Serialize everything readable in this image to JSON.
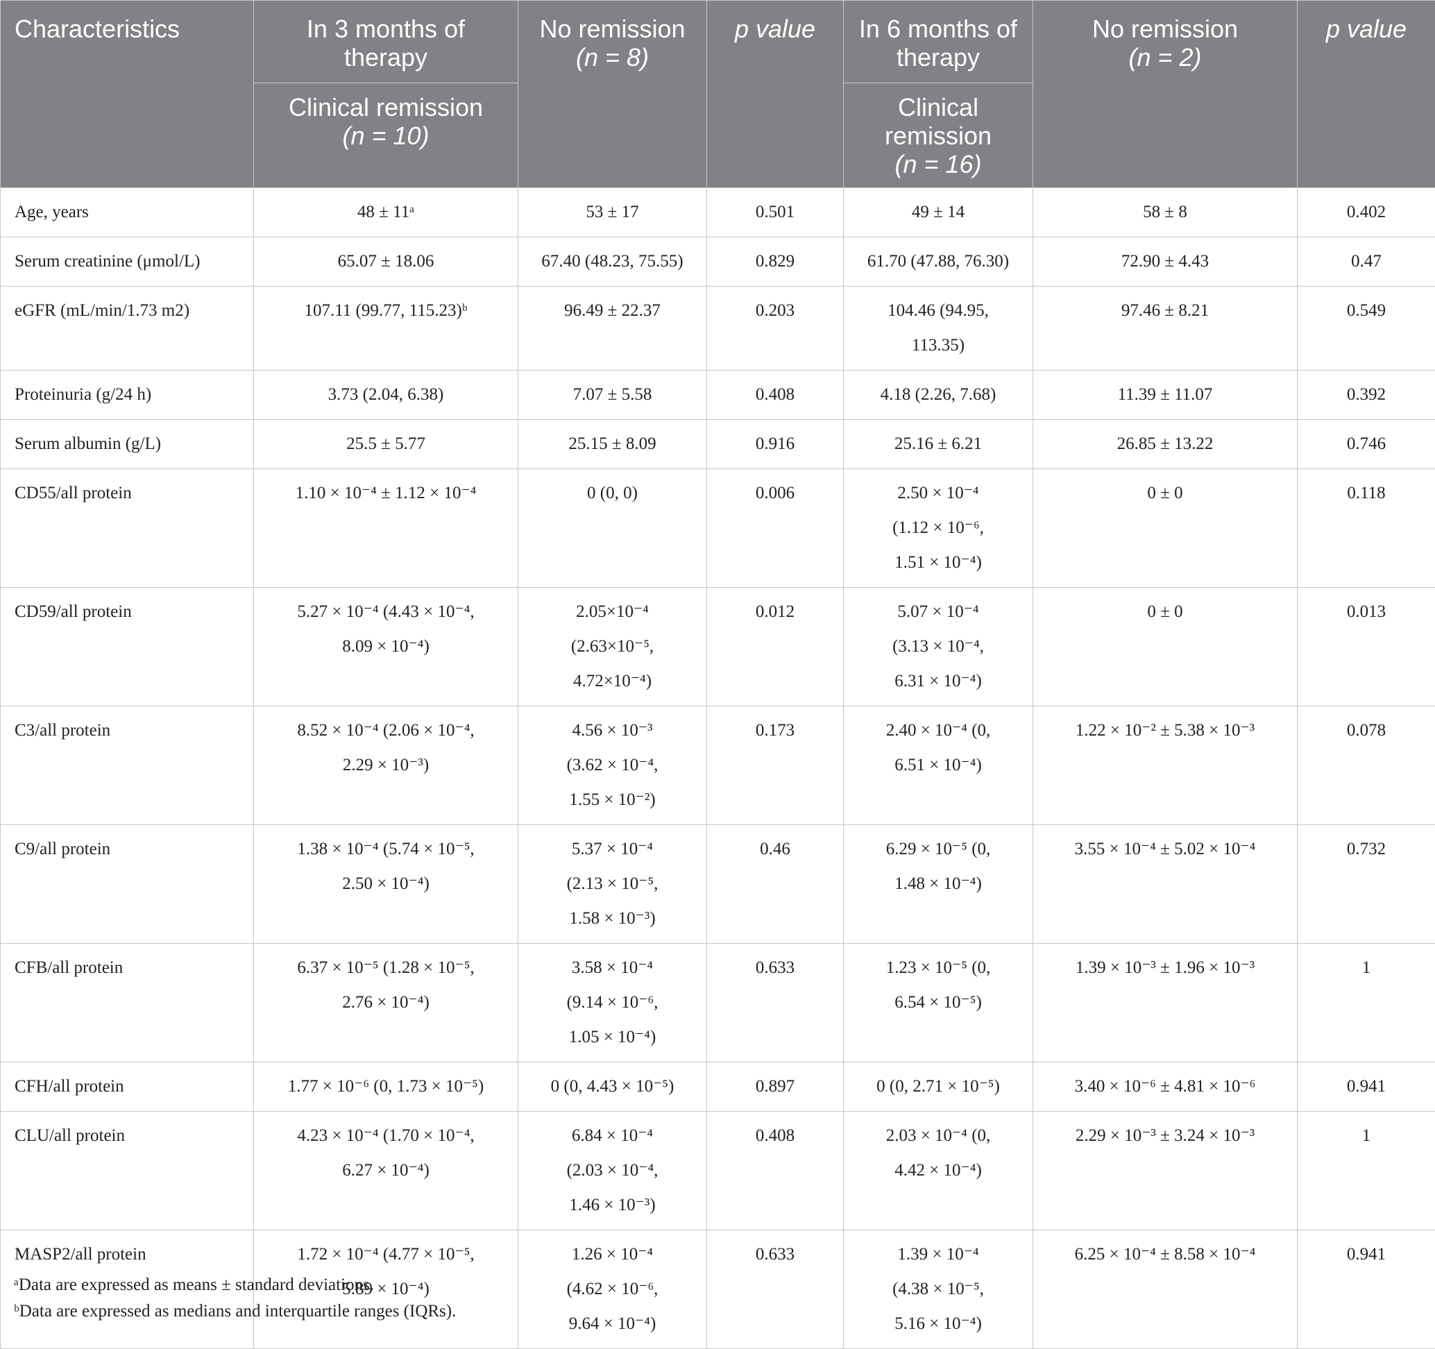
{
  "header": {
    "characteristics": "Characteristics",
    "m3_period": "In 3 months of therapy",
    "m3_remission": "Clinical remission",
    "m3_remission_n": "(n = 10)",
    "no_remission_1": "No remission",
    "no_remission_1_n": "(n = 8)",
    "p_value_1": "p value",
    "m6_period": "In 6 months of therapy",
    "m6_remission": "Clinical remission",
    "m6_remission_n": "(n = 16)",
    "no_remission_2": "No remission",
    "no_remission_2_n": "(n = 2)",
    "p_value_2": "p value"
  },
  "rows": [
    {
      "label": "Age, years",
      "c1": [
        "48 ± 11ᵃ"
      ],
      "c2": [
        "53 ± 17"
      ],
      "p1": "0.501",
      "c3": [
        "49 ± 14"
      ],
      "c4": [
        "58 ± 8"
      ],
      "p2": "0.402"
    },
    {
      "label": "Serum creatinine (μmol/L)",
      "c1": [
        "65.07 ± 18.06"
      ],
      "c2": [
        "67.40 (48.23, 75.55)"
      ],
      "p1": "0.829",
      "c3": [
        "61.70 (47.88, 76.30)"
      ],
      "c4": [
        "72.90 ± 4.43"
      ],
      "p2": "0.47"
    },
    {
      "label": "eGFR (mL/min/1.73 m2)",
      "c1": [
        "107.11 (99.77, 115.23)ᵇ"
      ],
      "c2": [
        "96.49 ± 22.37"
      ],
      "p1": "0.203",
      "c3": [
        "104.46 (94.95,",
        "113.35)"
      ],
      "c4": [
        "97.46 ± 8.21"
      ],
      "p2": "0.549"
    },
    {
      "label": "Proteinuria (g/24 h)",
      "c1": [
        "3.73 (2.04, 6.38)"
      ],
      "c2": [
        "7.07 ± 5.58"
      ],
      "p1": "0.408",
      "c3": [
        "4.18 (2.26, 7.68)"
      ],
      "c4": [
        "11.39 ± 11.07"
      ],
      "p2": "0.392"
    },
    {
      "label": "Serum albumin (g/L)",
      "c1": [
        "25.5 ± 5.77"
      ],
      "c2": [
        "25.15 ± 8.09"
      ],
      "p1": "0.916",
      "c3": [
        "25.16 ± 6.21"
      ],
      "c4": [
        "26.85 ± 13.22"
      ],
      "p2": "0.746"
    },
    {
      "label": "CD55/all protein",
      "c1": [
        "1.10 × 10⁻⁴ ± 1.12 × 10⁻⁴"
      ],
      "c2": [
        "0 (0, 0)"
      ],
      "p1": "0.006",
      "c3": [
        "2.50 × 10⁻⁴",
        "(1.12 × 10⁻⁶,",
        "1.51 × 10⁻⁴)"
      ],
      "c4": [
        "0 ± 0"
      ],
      "p2": "0.118"
    },
    {
      "label": "CD59/all protein",
      "c1": [
        "5.27 × 10⁻⁴ (4.43 × 10⁻⁴,",
        "8.09 × 10⁻⁴)"
      ],
      "c2": [
        "2.05×10⁻⁴",
        "(2.63×10⁻⁵,",
        "4.72×10⁻⁴)"
      ],
      "p1": "0.012",
      "c3": [
        "5.07 × 10⁻⁴",
        "(3.13 × 10⁻⁴,",
        "6.31 × 10⁻⁴)"
      ],
      "c4": [
        "0 ± 0"
      ],
      "p2": "0.013"
    },
    {
      "label": "C3/all protein",
      "c1": [
        "8.52 × 10⁻⁴ (2.06 × 10⁻⁴,",
        "2.29 × 10⁻³)"
      ],
      "c2": [
        "4.56 × 10⁻³",
        "(3.62 × 10⁻⁴,",
        "1.55 × 10⁻²)"
      ],
      "p1": "0.173",
      "c3": [
        "2.40 × 10⁻⁴ (0,",
        "6.51 × 10⁻⁴)"
      ],
      "c4": [
        "1.22 × 10⁻² ± 5.38 × 10⁻³"
      ],
      "p2": "0.078"
    },
    {
      "label": "C9/all protein",
      "c1": [
        "1.38 × 10⁻⁴ (5.74 × 10⁻⁵,",
        "2.50 × 10⁻⁴)"
      ],
      "c2": [
        "5.37 × 10⁻⁴",
        "(2.13 × 10⁻⁵,",
        "1.58 × 10⁻³)"
      ],
      "p1": "0.46",
      "c3": [
        "6.29 × 10⁻⁵ (0,",
        "1.48 × 10⁻⁴)"
      ],
      "c4": [
        "3.55 × 10⁻⁴ ± 5.02 × 10⁻⁴"
      ],
      "p2": "0.732"
    },
    {
      "label": "CFB/all protein",
      "c1": [
        "6.37 × 10⁻⁵ (1.28 × 10⁻⁵,",
        "2.76 × 10⁻⁴)"
      ],
      "c2": [
        "3.58 × 10⁻⁴",
        "(9.14 × 10⁻⁶,",
        "1.05 × 10⁻⁴)"
      ],
      "p1": "0.633",
      "c3": [
        "1.23 × 10⁻⁵ (0,",
        "6.54 × 10⁻⁵)"
      ],
      "c4": [
        "1.39 × 10⁻³ ± 1.96 × 10⁻³"
      ],
      "p2": "1"
    },
    {
      "label": "CFH/all protein",
      "c1": [
        "1.77 × 10⁻⁶ (0, 1.73 × 10⁻⁵)"
      ],
      "c2": [
        "0 (0, 4.43 × 10⁻⁵)"
      ],
      "p1": "0.897",
      "c3": [
        "0 (0, 2.71 × 10⁻⁵)"
      ],
      "c4": [
        "3.40 × 10⁻⁶ ± 4.81 × 10⁻⁶"
      ],
      "p2": "0.941"
    },
    {
      "label": "CLU/all protein",
      "c1": [
        "4.23 × 10⁻⁴ (1.70 × 10⁻⁴,",
        "6.27 × 10⁻⁴)"
      ],
      "c2": [
        "6.84 × 10⁻⁴",
        "(2.03 × 10⁻⁴,",
        "1.46 × 10⁻³)"
      ],
      "p1": "0.408",
      "c3": [
        "2.03 × 10⁻⁴ (0,",
        "4.42 × 10⁻⁴)"
      ],
      "c4": [
        "2.29 × 10⁻³ ± 3.24 × 10⁻³"
      ],
      "p2": "1"
    },
    {
      "label": "MASP2/all protein",
      "c1": [
        "1.72 × 10⁻⁴ (4.77 × 10⁻⁵,",
        "5.89 × 10⁻⁴)"
      ],
      "c2": [
        "1.26 × 10⁻⁴",
        "(4.62 × 10⁻⁶,",
        "9.64 × 10⁻⁴)"
      ],
      "p1": "0.633",
      "c3": [
        "1.39 × 10⁻⁴",
        "(4.38 × 10⁻⁵,",
        "5.16 × 10⁻⁴)"
      ],
      "c4": [
        "6.25 × 10⁻⁴ ± 8.58 × 10⁻⁴"
      ],
      "p2": "0.941"
    }
  ],
  "footnotes": [
    "ᵃData are expressed as means ± standard deviations.",
    "ᵇData are expressed as medians and interquartile ranges (IQRs)."
  ]
}
